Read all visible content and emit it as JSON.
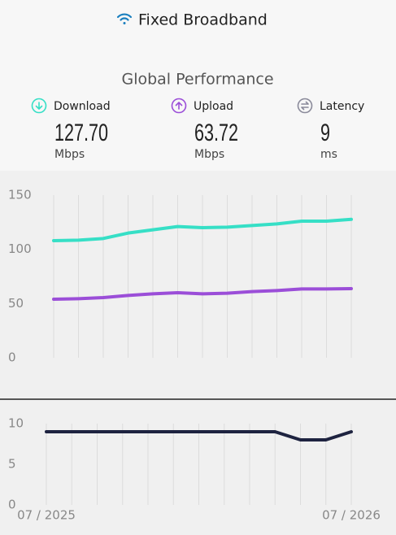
{
  "header": {
    "title": "Fixed Broadband",
    "subtitle": "Global Performance"
  },
  "stats": [
    {
      "label": "Download",
      "value": "127.70",
      "unit": "Mbps",
      "color": "#36dfc6"
    },
    {
      "label": "Upload",
      "value": "63.72",
      "unit": "Mbps",
      "color": "#9b4ed8"
    },
    {
      "label": "Latency",
      "value": "9",
      "unit": "ms",
      "color": "#8a8a9a"
    }
  ],
  "chart_data": [
    {
      "type": "line",
      "grid": "vertical",
      "categories": [
        "07 / 2025",
        null,
        null,
        null,
        null,
        null,
        null,
        null,
        null,
        null,
        null,
        null,
        "07 / 2026"
      ],
      "series": [
        {
          "name": "Download",
          "color": "#36dfc6",
          "values": [
            108,
            108.5,
            110,
            115,
            118,
            121,
            120,
            120.5,
            122,
            123.5,
            126,
            126,
            127.7
          ]
        },
        {
          "name": "Upload",
          "color": "#9b4ed8",
          "values": [
            54,
            54.5,
            55.5,
            57.5,
            59,
            60,
            59,
            59.5,
            61,
            62,
            63.5,
            63.5,
            63.72
          ]
        }
      ],
      "ylim": [
        0,
        150
      ],
      "yticks": [
        0,
        50,
        100,
        150
      ]
    },
    {
      "type": "line",
      "grid": "vertical",
      "categories": [
        "07 / 2025",
        null,
        null,
        null,
        null,
        null,
        null,
        null,
        null,
        null,
        null,
        null,
        "07 / 2026"
      ],
      "series": [
        {
          "name": "Latency",
          "color": "#1e2340",
          "values": [
            9,
            9,
            9,
            9,
            9,
            9,
            9,
            9,
            9,
            9,
            8,
            8,
            9
          ]
        }
      ],
      "ylim": [
        0,
        10
      ],
      "yticks": [
        0,
        5,
        10
      ]
    }
  ]
}
